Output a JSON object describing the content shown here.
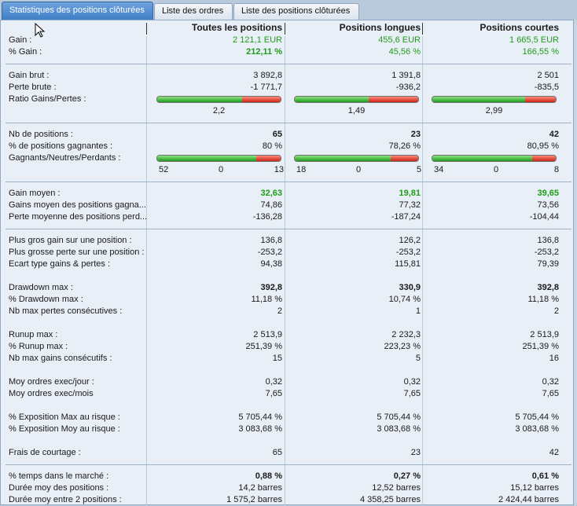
{
  "tabs": [
    {
      "label": "Statistiques des positions clôturées",
      "active": true
    },
    {
      "label": "Liste des ordres",
      "active": false
    },
    {
      "label": "Liste des positions clôturées",
      "active": false
    }
  ],
  "columns": [
    "Toutes les positions",
    "Positions longues",
    "Positions courtes"
  ],
  "colors": {
    "positive": "#1f9c19",
    "bar_green": "#1e9c1d",
    "bar_red": "#cc2418",
    "tab_active": "#3e7ec6"
  },
  "rows": {
    "gain": {
      "label": "Gain :",
      "v": [
        "2 121,1 EUR",
        "455,6 EUR",
        "1 665,5 EUR"
      ]
    },
    "pct_gain": {
      "label": "% Gain :",
      "v": [
        "212,11 %",
        "45,56 %",
        "166,55 %"
      ]
    },
    "gain_brut": {
      "label": "Gain brut :",
      "v": [
        "3 892,8",
        "1 391,8",
        "2 501"
      ]
    },
    "perte_brute": {
      "label": "Perte brute :",
      "v": [
        "-1 771,7",
        "-936,2",
        "-835,5"
      ]
    },
    "ratio": {
      "label": "Ratio Gains/Pertes :",
      "v": [
        "2,2",
        "1,49",
        "2,99"
      ],
      "green_fraction": [
        0.69,
        0.6,
        0.75
      ]
    },
    "nb_pos": {
      "label": "Nb de positions :",
      "v": [
        "65",
        "23",
        "42"
      ]
    },
    "pct_gagnantes": {
      "label": "% de positions gagnantes :",
      "v": [
        "80 %",
        "78,26 %",
        "80,95 %"
      ]
    },
    "gnp": {
      "label": "Gagnants/Neutres/Perdants :",
      "green_fraction": [
        0.8,
        0.78,
        0.81
      ],
      "counts": [
        [
          "52",
          "0",
          "13"
        ],
        [
          "18",
          "0",
          "5"
        ],
        [
          "34",
          "0",
          "8"
        ]
      ]
    },
    "gain_moyen": {
      "label": "Gain moyen :",
      "v": [
        "32,63",
        "19,81",
        "39,65"
      ]
    },
    "gains_moy_gagn": {
      "label": "Gains moyen des positions gagna...",
      "v": [
        "74,86",
        "77,32",
        "73,56"
      ]
    },
    "perte_moy_perd": {
      "label": "Perte moyenne des positions perd...",
      "v": [
        "-136,28",
        "-187,24",
        "-104,44"
      ]
    },
    "plus_gros_gain": {
      "label": "Plus gros gain sur une position :",
      "v": [
        "136,8",
        "126,2",
        "136,8"
      ]
    },
    "plus_grosse_perte": {
      "label": "Plus grosse perte sur une position :",
      "v": [
        "-253,2",
        "-253,2",
        "-253,2"
      ]
    },
    "ecart_type": {
      "label": "Ecart type gains & pertes :",
      "v": [
        "94,38",
        "115,81",
        "79,39"
      ]
    },
    "drawdown": {
      "label": "Drawdown max :",
      "v": [
        "392,8",
        "330,9",
        "392,8"
      ]
    },
    "pct_drawdown": {
      "label": "% Drawdown max :",
      "v": [
        "11,18 %",
        "10,74 %",
        "11,18 %"
      ]
    },
    "max_pertes": {
      "label": "Nb max pertes consécutives :",
      "v": [
        "2",
        "1",
        "2"
      ]
    },
    "runup": {
      "label": "Runup max :",
      "v": [
        "2 513,9",
        "2 232,3",
        "2 513,9"
      ]
    },
    "pct_runup": {
      "label": "% Runup max :",
      "v": [
        "251,39 %",
        "223,23 %",
        "251,39 %"
      ]
    },
    "max_gains": {
      "label": "Nb max gains consécutifs :",
      "v": [
        "15",
        "5",
        "16"
      ]
    },
    "ordres_jour": {
      "label": "Moy ordres exec/jour :",
      "v": [
        "0,32",
        "0,32",
        "0,32"
      ]
    },
    "ordres_mois": {
      "label": "Moy ordres exec/mois",
      "v": [
        "7,65",
        "7,65",
        "7,65"
      ]
    },
    "expo_max": {
      "label": "% Exposition Max au risque :",
      "v": [
        "5 705,44 %",
        "5 705,44 %",
        "5 705,44 %"
      ]
    },
    "expo_moy": {
      "label": "% Exposition Moy au risque :",
      "v": [
        "3 083,68 %",
        "3 083,68 %",
        "3 083,68 %"
      ]
    },
    "frais": {
      "label": "Frais de courtage :",
      "v": [
        "65",
        "23",
        "42"
      ]
    },
    "temps_marche": {
      "label": "% temps dans le marché :",
      "v": [
        "0,88 %",
        "0,27 %",
        "0,61 %"
      ]
    },
    "duree_moy": {
      "label": "Durée moy des positions :",
      "v": [
        "14,2 barres",
        "12,52 barres",
        "15,12 barres"
      ]
    },
    "duree_entre": {
      "label": "Durée moy entre 2 positions :",
      "v": [
        "1 575,2 barres",
        "4 358,25 barres",
        "2 424,44 barres"
      ]
    }
  }
}
